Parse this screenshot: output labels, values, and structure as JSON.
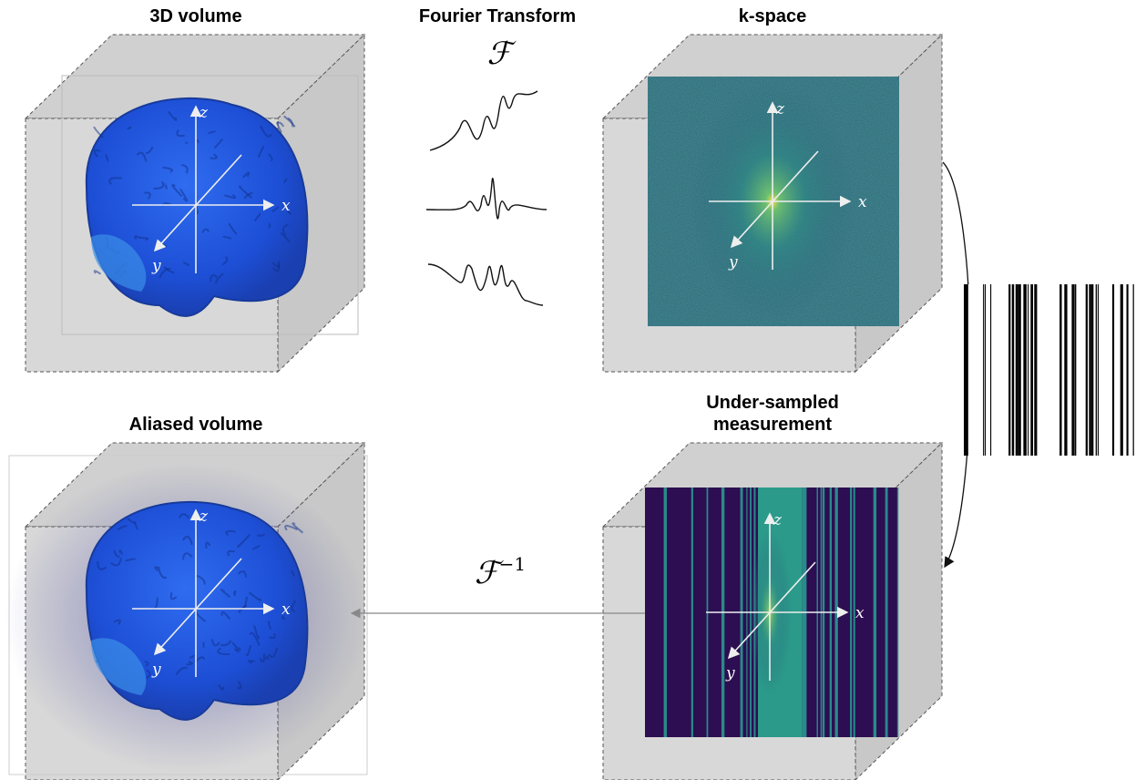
{
  "panels": [
    {
      "title": [
        "3D volume"
      ],
      "axis_labels": [
        "z",
        "x",
        "y"
      ]
    },
    {
      "title": [
        "k-space"
      ],
      "axis_labels": [
        "z",
        "x",
        "y"
      ]
    },
    {
      "title": [
        "Aliased volume"
      ],
      "axis_labels": [
        "z",
        "x",
        "y"
      ]
    },
    {
      "title": [
        "Under-sampled",
        "measurement"
      ],
      "axis_labels": [
        "z",
        "x",
        "y"
      ]
    }
  ],
  "transform": {
    "title": "Fourier Transform",
    "symbol": "ℱ"
  },
  "inverse": {
    "symbol": "ℱ",
    "exponent": "−1"
  }
}
